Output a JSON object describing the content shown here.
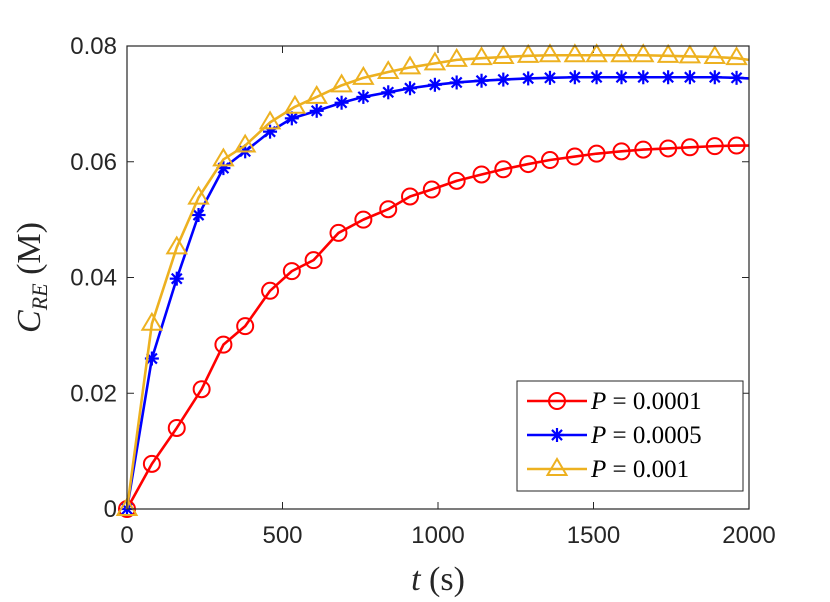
{
  "chart_data": {
    "type": "line",
    "xlabel": {
      "var": "t",
      "unit": "(s)"
    },
    "ylabel": {
      "var": "C",
      "sub": "RE",
      "unit": "(M)"
    },
    "xlim": [
      0,
      2000
    ],
    "ylim": [
      0,
      0.08
    ],
    "xticks": [
      0,
      500,
      1000,
      1500,
      2000
    ],
    "xtick_labels": [
      "0",
      "500",
      "1000",
      "1500",
      "2000"
    ],
    "yticks": [
      0,
      0.02,
      0.04,
      0.06,
      0.08
    ],
    "ytick_labels": [
      "0",
      "0.02",
      "0.04",
      "0.06",
      "0.08"
    ],
    "grid": false,
    "legend_position": "bottom-right",
    "series": [
      {
        "name": "P = 0.0001",
        "legend_var": "P",
        "legend_value": "= 0.0001",
        "color": "#ff0000",
        "marker": "circle",
        "x": [
          0,
          80,
          160,
          240,
          310,
          380,
          460,
          530,
          600,
          680,
          760,
          840,
          910,
          980,
          1060,
          1140,
          1210,
          1290,
          1360,
          1440,
          1510,
          1590,
          1660,
          1740,
          1810,
          1890,
          1960,
          2000
        ],
        "y": [
          0,
          0.0078,
          0.014,
          0.0207,
          0.0284,
          0.0316,
          0.0377,
          0.0411,
          0.043,
          0.0477,
          0.05,
          0.0518,
          0.054,
          0.0552,
          0.0567,
          0.0578,
          0.0587,
          0.0596,
          0.0603,
          0.0609,
          0.0614,
          0.0618,
          0.0621,
          0.0623,
          0.0625,
          0.0627,
          0.0628,
          0.0628
        ]
      },
      {
        "name": "P = 0.0005",
        "legend_var": "P",
        "legend_value": "= 0.0005",
        "color": "#0000ff",
        "marker": "asterisk",
        "x": [
          0,
          80,
          160,
          230,
          310,
          380,
          460,
          530,
          610,
          690,
          760,
          840,
          910,
          990,
          1060,
          1140,
          1210,
          1290,
          1360,
          1440,
          1510,
          1590,
          1660,
          1740,
          1810,
          1890,
          1960,
          2000
        ],
        "y": [
          0,
          0.026,
          0.0398,
          0.0508,
          0.0589,
          0.0618,
          0.0652,
          0.0675,
          0.0688,
          0.0702,
          0.0712,
          0.072,
          0.0727,
          0.0733,
          0.0737,
          0.074,
          0.0742,
          0.0744,
          0.0745,
          0.0746,
          0.0746,
          0.0746,
          0.0746,
          0.0746,
          0.0746,
          0.0746,
          0.0745,
          0.0744
        ]
      },
      {
        "name": "P = 0.001",
        "legend_var": "P",
        "legend_value": "= 0.001",
        "color": "#edb120",
        "marker": "triangle",
        "x": [
          0,
          80,
          160,
          230,
          310,
          380,
          460,
          540,
          610,
          690,
          760,
          840,
          910,
          990,
          1060,
          1140,
          1210,
          1290,
          1360,
          1440,
          1510,
          1590,
          1660,
          1740,
          1810,
          1890,
          1960,
          2000
        ],
        "y": [
          0,
          0.032,
          0.0452,
          0.0538,
          0.0604,
          0.0628,
          0.0668,
          0.0695,
          0.0712,
          0.0732,
          0.0745,
          0.0755,
          0.0763,
          0.077,
          0.0776,
          0.0779,
          0.0781,
          0.0783,
          0.0784,
          0.0784,
          0.0784,
          0.0784,
          0.0784,
          0.0783,
          0.0782,
          0.0781,
          0.0779,
          0.0776
        ]
      }
    ]
  }
}
